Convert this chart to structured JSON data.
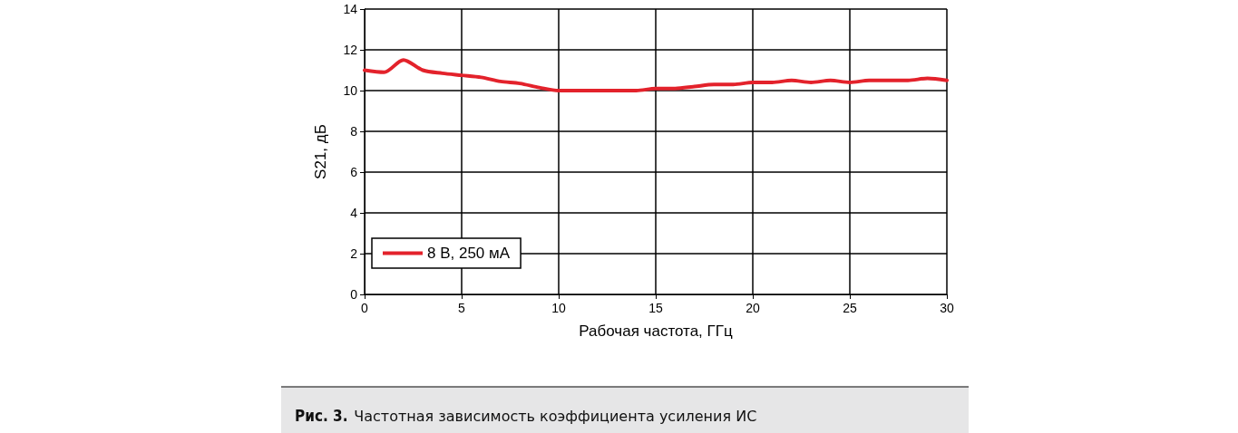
{
  "chart_data": {
    "type": "line",
    "xlabel": "Рабочая частота, ГГц",
    "ylabel": "S21, дБ",
    "x": [
      0,
      1,
      2,
      3,
      4,
      5,
      6,
      7,
      8,
      9,
      10,
      11,
      12,
      13,
      14,
      15,
      16,
      17,
      18,
      19,
      20,
      21,
      22,
      23,
      24,
      25,
      26,
      27,
      28,
      29,
      30
    ],
    "series": [
      {
        "name": "8 В, 250 мА",
        "color": "#e3222b",
        "values": [
          11.0,
          10.9,
          11.5,
          11.0,
          10.85,
          10.75,
          10.65,
          10.45,
          10.35,
          10.15,
          10.0,
          10.0,
          10.0,
          10.0,
          10.0,
          10.1,
          10.1,
          10.2,
          10.3,
          10.3,
          10.4,
          10.4,
          10.5,
          10.4,
          10.5,
          10.4,
          10.5,
          10.5,
          10.5,
          10.6,
          10.5
        ]
      }
    ],
    "xlim": [
      0,
      30
    ],
    "xticks": [
      0,
      5,
      10,
      15,
      20,
      25,
      30
    ],
    "ylim": [
      0,
      14
    ],
    "yticks": [
      0,
      2,
      4,
      6,
      8,
      10,
      12,
      14
    ],
    "grid": true,
    "legend": "bottom left",
    "marker": "none",
    "line_style": "solid",
    "annotations": [
      "Рис. 3. Частотная зависимость коэффициента усиления ИС"
    ]
  }
}
